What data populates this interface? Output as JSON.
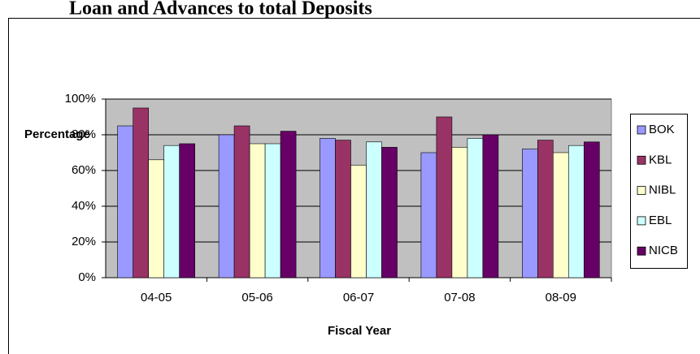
{
  "chart_data": {
    "type": "bar",
    "title": "Loan and Advances to total Deposits",
    "x_label": "Fiscal Year",
    "y_label": "Percentage",
    "categories": [
      "04-05",
      "05-06",
      "06-07",
      "07-08",
      "08-09"
    ],
    "series": [
      {
        "name": "BOK",
        "color": "#9999ff",
        "values": [
          85,
          80,
          78,
          70,
          72
        ]
      },
      {
        "name": "KBL",
        "color": "#993366",
        "values": [
          95,
          85,
          77,
          90,
          77
        ]
      },
      {
        "name": "NIBL",
        "color": "#ffffcc",
        "values": [
          66,
          75,
          63,
          73,
          70
        ]
      },
      {
        "name": "EBL",
        "color": "#ccffff",
        "values": [
          74,
          75,
          76,
          78,
          74
        ]
      },
      {
        "name": "NICB",
        "color": "#660066",
        "values": [
          75,
          82,
          73,
          80,
          76
        ]
      }
    ],
    "ylim": [
      0,
      100
    ],
    "yticks": [
      {
        "value": 0,
        "label": "0%"
      },
      {
        "value": 20,
        "label": "20%"
      },
      {
        "value": 40,
        "label": "40%"
      },
      {
        "value": 60,
        "label": "60%"
      },
      {
        "value": 80,
        "label": "80%"
      },
      {
        "value": 100,
        "label": "100%"
      }
    ],
    "grid": true,
    "legend": "right"
  }
}
